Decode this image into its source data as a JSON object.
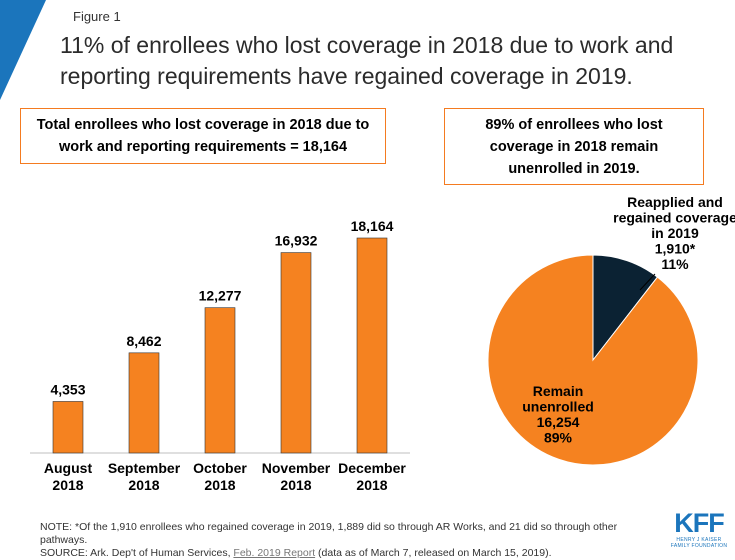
{
  "figure_label": "Figure 1",
  "title": "11% of enrollees who lost coverage in 2018 due to work and reporting requirements have regained coverage in 2019.",
  "callout_left": {
    "line1": "Total enrollees who lost coverage in 2018 due to",
    "line2": "work and reporting requirements = 18,164"
  },
  "callout_right": {
    "line1": "89% of enrollees who lost",
    "line2": "coverage in 2018 remain",
    "line3": "unenrolled in 2019."
  },
  "colors": {
    "accent": "#f58220",
    "dark": "#0b2233",
    "corner": "#1b75bc",
    "border": "#f47b20"
  },
  "chart_data": [
    {
      "type": "bar",
      "categories": [
        [
          "August",
          "2018"
        ],
        [
          "September",
          "2018"
        ],
        [
          "October",
          "2018"
        ],
        [
          "November",
          "2018"
        ],
        [
          "December",
          "2018"
        ]
      ],
      "values": [
        4353,
        8462,
        12277,
        16932,
        18164
      ],
      "value_labels": [
        "4,353",
        "8,462",
        "12,277",
        "16,932",
        "18,164"
      ],
      "ylim": [
        0,
        20000
      ],
      "grid": false
    },
    {
      "type": "pie",
      "slices": [
        {
          "label": [
            "Reapplied and",
            "regained coverage",
            "in 2019",
            "1,910*",
            "11%"
          ],
          "value": 1910,
          "percent": 11,
          "color": "#0b2233"
        },
        {
          "label": [
            "Remain",
            "unenrolled",
            "16,254",
            "89%"
          ],
          "value": 16254,
          "percent": 89,
          "color": "#f58220"
        }
      ]
    }
  ],
  "note": {
    "line1": "NOTE: *Of the 1,910 enrollees who regained coverage in 2019, 1,889 did so through AR Works, and 21 did so through other pathways.",
    "line2_prefix": "SOURCE:  Ark. Dep't of Human Services, ",
    "line2_link": "Feb. 2019 Report",
    "line2_suffix": " (data as of March 7, released on March 15, 2019)."
  },
  "logo": {
    "text": "KFF",
    "sub1": "HENRY J KAISER",
    "sub2": "FAMILY FOUNDATION"
  }
}
